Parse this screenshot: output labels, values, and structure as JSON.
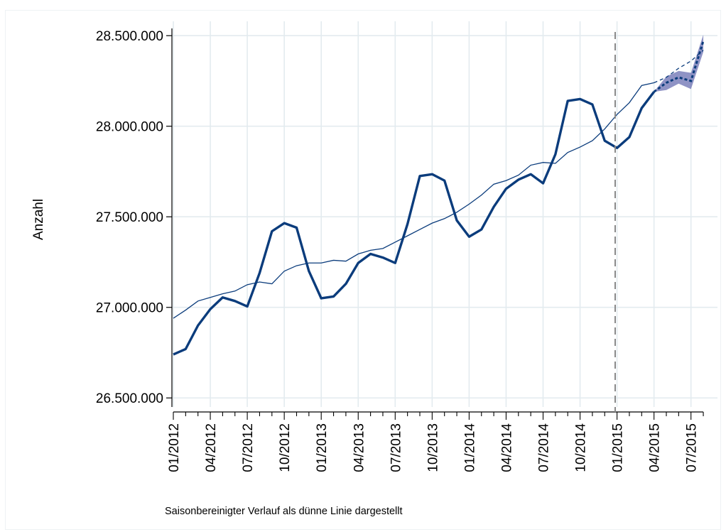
{
  "chart_data": {
    "type": "line",
    "title": "",
    "ylabel": "Anzahl",
    "xlabel": "",
    "ylim": [
      26450000,
      28540000
    ],
    "yticks": [
      26500000,
      27000000,
      27500000,
      28000000,
      28500000
    ],
    "ytick_labels": [
      "26.500.000",
      "27.000.000",
      "27.500.000",
      "28.000.000",
      "28.500.000"
    ],
    "x": [
      "01/2012",
      "02/2012",
      "03/2012",
      "04/2012",
      "05/2012",
      "06/2012",
      "07/2012",
      "08/2012",
      "09/2012",
      "10/2012",
      "11/2012",
      "12/2012",
      "01/2013",
      "02/2013",
      "03/2013",
      "04/2013",
      "05/2013",
      "06/2013",
      "07/2013",
      "08/2013",
      "09/2013",
      "10/2013",
      "11/2013",
      "12/2013",
      "01/2014",
      "02/2014",
      "03/2014",
      "04/2014",
      "05/2014",
      "06/2014",
      "07/2014",
      "08/2014",
      "09/2014",
      "10/2014",
      "11/2014",
      "12/2014",
      "01/2015",
      "02/2015",
      "03/2015",
      "04/2015",
      "05/2015",
      "06/2015",
      "07/2015",
      "08/2015"
    ],
    "xtick_labels": [
      "01/2012",
      "04/2012",
      "07/2012",
      "10/2012",
      "01/2013",
      "04/2013",
      "07/2013",
      "10/2013",
      "01/2014",
      "04/2014",
      "07/2014",
      "10/2014",
      "01/2015",
      "04/2015",
      "07/2015"
    ],
    "forecast_start": "05/2015",
    "forecast_marker": "12/2014",
    "series": [
      {
        "role": "original",
        "color": "#0b3c7c",
        "values": [
          26740000,
          26770000,
          26900000,
          26990000,
          27055000,
          27035000,
          27005000,
          27190000,
          27420000,
          27465000,
          27440000,
          27200000,
          27050000,
          27060000,
          27130000,
          27245000,
          27295000,
          27275000,
          27245000,
          27460000,
          27725000,
          27735000,
          27700000,
          27480000,
          27390000,
          27430000,
          27555000,
          27655000,
          27705000,
          27735000,
          27685000,
          27845000,
          28140000,
          28150000,
          28120000,
          27920000,
          27880000,
          27940000,
          28100000,
          28190000,
          28240000,
          28270000,
          28250000,
          28470000
        ]
      },
      {
        "role": "seasonally-adjusted",
        "color": "#0b3c7c",
        "values": [
          26940000,
          26985000,
          27035000,
          27055000,
          27075000,
          27090000,
          27125000,
          27140000,
          27130000,
          27200000,
          27230000,
          27245000,
          27245000,
          27260000,
          27255000,
          27295000,
          27315000,
          27325000,
          27360000,
          27395000,
          27430000,
          27465000,
          27490000,
          27525000,
          27570000,
          27620000,
          27680000,
          27700000,
          27730000,
          27785000,
          27800000,
          27795000,
          27855000,
          27885000,
          27920000,
          27985000,
          28065000,
          28130000,
          28225000,
          28240000,
          28270000,
          28320000,
          28360000,
          28420000
        ]
      }
    ],
    "confidence_band": {
      "color": "#6a6fb2",
      "x": [
        "04/2015",
        "05/2015",
        "06/2015",
        "07/2015",
        "08/2015"
      ],
      "lower": [
        28190000,
        28200000,
        28235000,
        28205000,
        28410000
      ],
      "upper": [
        28190000,
        28275000,
        28305000,
        28295000,
        28505000
      ]
    },
    "annotation": "Saisonbereinigter Verlauf als dünne Linie dargestellt",
    "grid": true,
    "legend": "none"
  }
}
